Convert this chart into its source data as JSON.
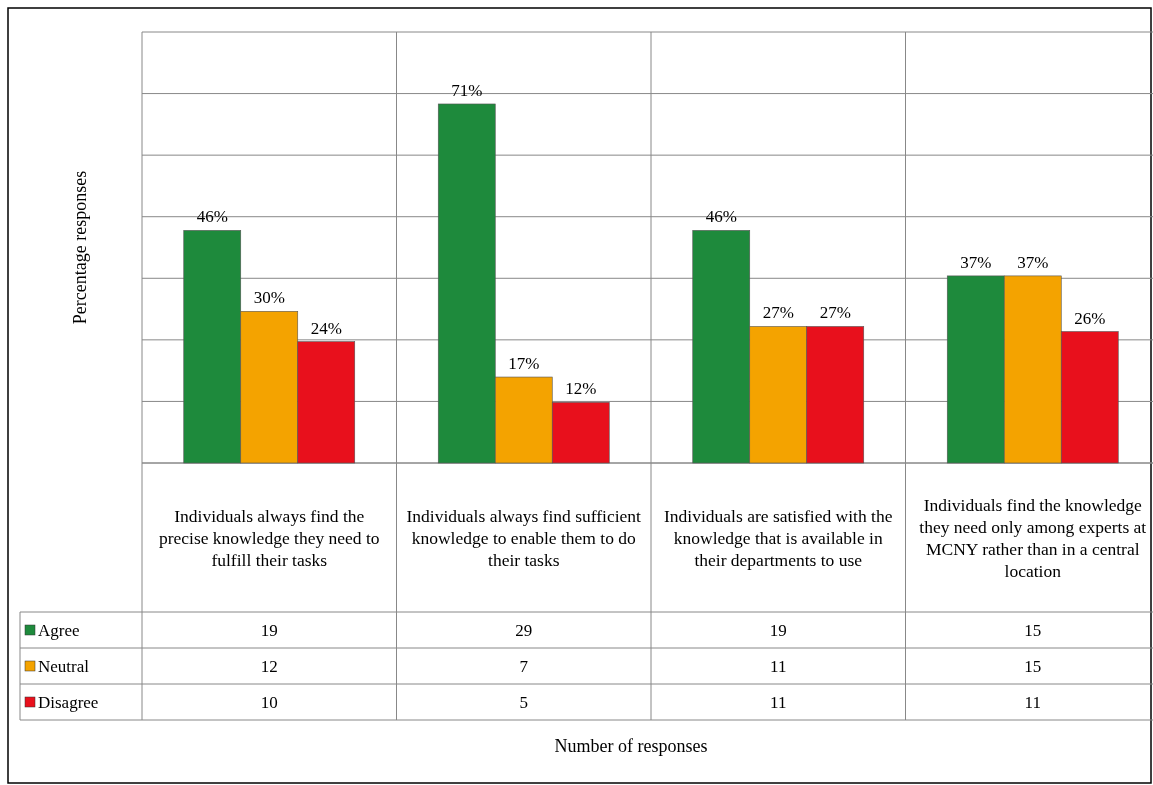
{
  "chart_data": {
    "type": "bar",
    "ylabel": "Percentage responses",
    "categories": [
      "Individuals always find the precise knowledge they need to fulfill their tasks",
      "Individuals always find sufficient knowledge to enable them to do their tasks",
      "Individuals are satisfied with the knowledge that is available in their departments to use",
      "Individuals find the knowledge they need only among experts at MCNY rather than in a central location"
    ],
    "series": [
      {
        "name": "Agree",
        "color": "#1e8a3c",
        "values": [
          46,
          71,
          46,
          37
        ],
        "value_labels": [
          "46%",
          "71%",
          "46%",
          "37%"
        ]
      },
      {
        "name": "Neutral",
        "color": "#f4a300",
        "values": [
          30,
          17,
          27,
          37
        ],
        "value_labels": [
          "30%",
          "17%",
          "27%",
          "37%"
        ]
      },
      {
        "name": "Disagree",
        "color": "#e8101c",
        "values": [
          24,
          12,
          27,
          26
        ],
        "value_labels": [
          "24%",
          "12%",
          "27%",
          "26%"
        ]
      }
    ],
    "annotations": [
      "Number of responses",
      "19",
      "29",
      "19",
      "15",
      "12",
      "7",
      "11",
      "15",
      "10",
      "5",
      "11",
      "11"
    ],
    "tick_labels": "x",
    "grid": "y",
    "legend": "bottom left"
  }
}
